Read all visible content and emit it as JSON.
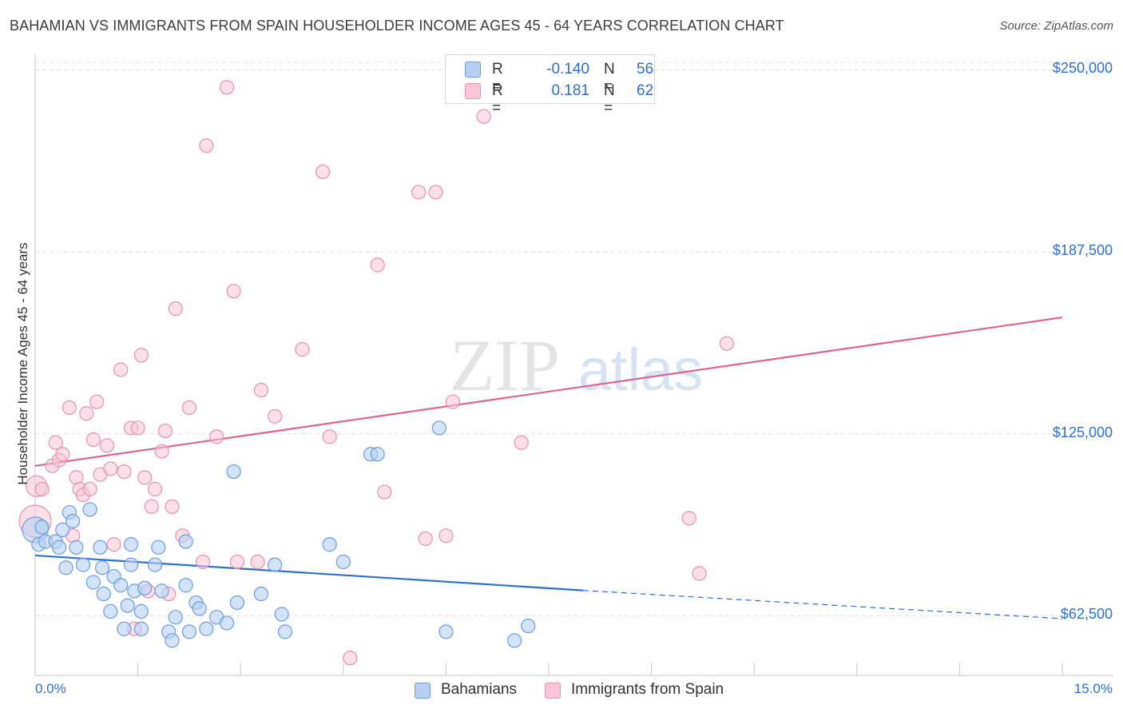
{
  "title": "BAHAMIAN VS IMMIGRANTS FROM SPAIN HOUSEHOLDER INCOME AGES 45 - 64 YEARS CORRELATION CHART",
  "source": "Source: ZipAtlas.com",
  "watermark": {
    "zip": "ZIP",
    "atlas": "atlas"
  },
  "legend_top": {
    "rows": [
      {
        "r_label": "R =",
        "r_value": "-0.140",
        "n_label": "N =",
        "n_value": "56"
      },
      {
        "r_label": "R =",
        "r_value": "0.181",
        "n_label": "N =",
        "n_value": "62"
      }
    ]
  },
  "legend_bottom": {
    "items": [
      "Bahamians",
      "Immigrants from Spain"
    ]
  },
  "colors": {
    "blue_fill": "#b7d0f3",
    "blue_stroke": "#6d9de0",
    "blue_line": "#2f6fd0",
    "pink_fill": "#f8c6d5",
    "pink_stroke": "#e892ad",
    "pink_line": "#e0638d",
    "axis_text": "#2f6fd0",
    "grid": "#e1e1e1"
  },
  "chart_data": {
    "type": "scatter",
    "title": "BAHAMIAN VS IMMIGRANTS FROM SPAIN HOUSEHOLDER INCOME AGES 45 - 64 YEARS CORRELATION CHART",
    "xlabel": "",
    "ylabel": "Householder Income Ages 45 - 64 years",
    "xlim": [
      0,
      15
    ],
    "ylim": [
      42000,
      257000
    ],
    "x_tick_labels": [
      "0.0%",
      "15.0%"
    ],
    "y_ticks": [
      62500,
      125000,
      187500,
      250000
    ],
    "y_tick_labels": [
      "$62,500",
      "$125,000",
      "$187,500",
      "$250,000"
    ],
    "grid": true,
    "legend_position": "top-center",
    "series": [
      {
        "name": "Bahamians",
        "r": -0.14,
        "n": 56,
        "trend": {
          "x": [
            0,
            8.0
          ],
          "y": [
            83200,
            71200
          ],
          "dashed_to": [
            15.0,
            61500
          ]
        },
        "points": [
          [
            0.0,
            92000
          ],
          [
            0.05,
            87000
          ],
          [
            0.1,
            93000
          ],
          [
            0.15,
            88000
          ],
          [
            0.3,
            88000
          ],
          [
            0.35,
            86000
          ],
          [
            0.4,
            92000
          ],
          [
            0.45,
            79000
          ],
          [
            0.5,
            98000
          ],
          [
            0.55,
            95000
          ],
          [
            0.6,
            86000
          ],
          [
            0.7,
            80000
          ],
          [
            0.8,
            99000
          ],
          [
            0.85,
            74000
          ],
          [
            0.95,
            86000
          ],
          [
            0.98,
            79000
          ],
          [
            1.0,
            70000
          ],
          [
            1.1,
            64000
          ],
          [
            1.15,
            76000
          ],
          [
            1.25,
            73000
          ],
          [
            1.3,
            58000
          ],
          [
            1.35,
            66000
          ],
          [
            1.4,
            87000
          ],
          [
            1.4,
            80000
          ],
          [
            1.45,
            71000
          ],
          [
            1.55,
            64000
          ],
          [
            1.55,
            58000
          ],
          [
            1.6,
            72000
          ],
          [
            1.75,
            80000
          ],
          [
            1.8,
            86000
          ],
          [
            1.85,
            71000
          ],
          [
            1.95,
            57000
          ],
          [
            2.0,
            54000
          ],
          [
            2.05,
            62000
          ],
          [
            2.2,
            88000
          ],
          [
            2.2,
            73000
          ],
          [
            2.25,
            57000
          ],
          [
            2.35,
            67000
          ],
          [
            2.4,
            65000
          ],
          [
            2.5,
            58000
          ],
          [
            2.65,
            62000
          ],
          [
            2.8,
            60000
          ],
          [
            2.9,
            112000
          ],
          [
            2.95,
            67000
          ],
          [
            3.3,
            70000
          ],
          [
            3.5,
            80000
          ],
          [
            3.6,
            63000
          ],
          [
            3.65,
            57000
          ],
          [
            4.3,
            87000
          ],
          [
            4.5,
            81000
          ],
          [
            4.9,
            118000
          ],
          [
            5.0,
            118000
          ],
          [
            5.9,
            127000
          ],
          [
            6.0,
            57000
          ],
          [
            7.0,
            54000
          ],
          [
            7.2,
            59000
          ]
        ]
      },
      {
        "name": "Immigrants from Spain",
        "r": 0.181,
        "n": 62,
        "trend": {
          "x": [
            0,
            15.0
          ],
          "y": [
            114000,
            165000
          ]
        },
        "points": [
          [
            0.0,
            95000
          ],
          [
            0.02,
            107000
          ],
          [
            0.1,
            106000
          ],
          [
            0.25,
            114000
          ],
          [
            0.3,
            122000
          ],
          [
            0.35,
            116000
          ],
          [
            0.4,
            118000
          ],
          [
            0.5,
            134000
          ],
          [
            0.55,
            90000
          ],
          [
            0.6,
            110000
          ],
          [
            0.65,
            106000
          ],
          [
            0.7,
            104000
          ],
          [
            0.75,
            132000
          ],
          [
            0.8,
            106000
          ],
          [
            0.85,
            123000
          ],
          [
            0.9,
            136000
          ],
          [
            0.95,
            111000
          ],
          [
            1.05,
            121000
          ],
          [
            1.1,
            113000
          ],
          [
            1.15,
            87000
          ],
          [
            1.25,
            147000
          ],
          [
            1.3,
            112000
          ],
          [
            1.4,
            127000
          ],
          [
            1.45,
            58000
          ],
          [
            1.5,
            127000
          ],
          [
            1.55,
            152000
          ],
          [
            1.6,
            110000
          ],
          [
            1.65,
            71000
          ],
          [
            1.7,
            100000
          ],
          [
            1.75,
            106000
          ],
          [
            1.85,
            119000
          ],
          [
            1.9,
            126000
          ],
          [
            1.95,
            70000
          ],
          [
            2.0,
            100000
          ],
          [
            2.05,
            168000
          ],
          [
            2.15,
            90000
          ],
          [
            2.25,
            134000
          ],
          [
            2.45,
            81000
          ],
          [
            2.5,
            224000
          ],
          [
            2.65,
            124000
          ],
          [
            2.8,
            244000
          ],
          [
            2.9,
            174000
          ],
          [
            2.95,
            81000
          ],
          [
            3.25,
            81000
          ],
          [
            3.3,
            140000
          ],
          [
            3.5,
            131000
          ],
          [
            3.9,
            154000
          ],
          [
            4.2,
            215000
          ],
          [
            4.3,
            124000
          ],
          [
            4.6,
            48000
          ],
          [
            5.0,
            183000
          ],
          [
            5.1,
            105000
          ],
          [
            5.6,
            208000
          ],
          [
            5.7,
            89000
          ],
          [
            5.85,
            208000
          ],
          [
            6.0,
            90000
          ],
          [
            6.1,
            136000
          ],
          [
            6.55,
            234000
          ],
          [
            7.1,
            122000
          ],
          [
            9.55,
            96000
          ],
          [
            9.7,
            77000
          ],
          [
            10.1,
            156000
          ]
        ]
      }
    ]
  }
}
